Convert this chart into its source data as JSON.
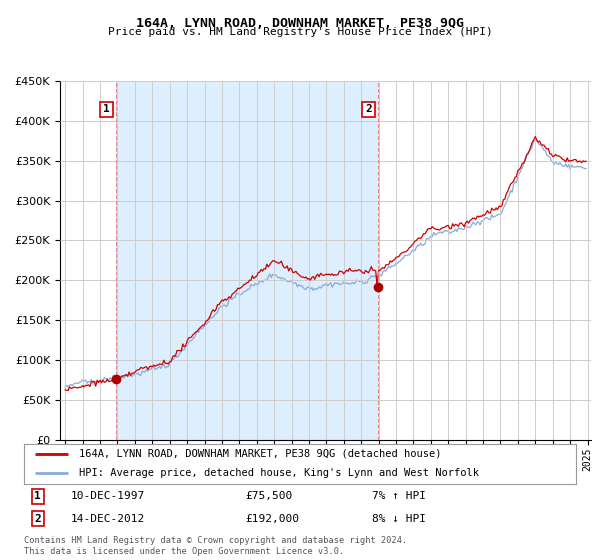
{
  "title": "164A, LYNN ROAD, DOWNHAM MARKET, PE38 9QG",
  "subtitle": "Price paid vs. HM Land Registry's House Price Index (HPI)",
  "sale1_date": "10-DEC-1997",
  "sale1_price": 75500,
  "sale1_hpi_pct": "7% ↑ HPI",
  "sale2_date": "14-DEC-2012",
  "sale2_price": 192000,
  "sale2_hpi_pct": "8% ↓ HPI",
  "legend1": "164A, LYNN ROAD, DOWNHAM MARKET, PE38 9QG (detached house)",
  "legend2": "HPI: Average price, detached house, King's Lynn and West Norfolk",
  "footnote": "Contains HM Land Registry data © Crown copyright and database right 2024.\nThis data is licensed under the Open Government Licence v3.0.",
  "line_color_red": "#cc0000",
  "line_color_blue": "#88aadd",
  "band_color": "#ddeeff",
  "sale_dot_color": "#aa0000",
  "grid_color": "#cccccc",
  "background_color": "#ffffff",
  "ylim": [
    0,
    450000
  ],
  "yticks": [
    0,
    50000,
    100000,
    150000,
    200000,
    250000,
    300000,
    350000,
    400000,
    450000
  ],
  "sale1_year": 1997.917,
  "sale2_year": 2012.958,
  "xmin": 1995.0,
  "xmax": 2025.0
}
